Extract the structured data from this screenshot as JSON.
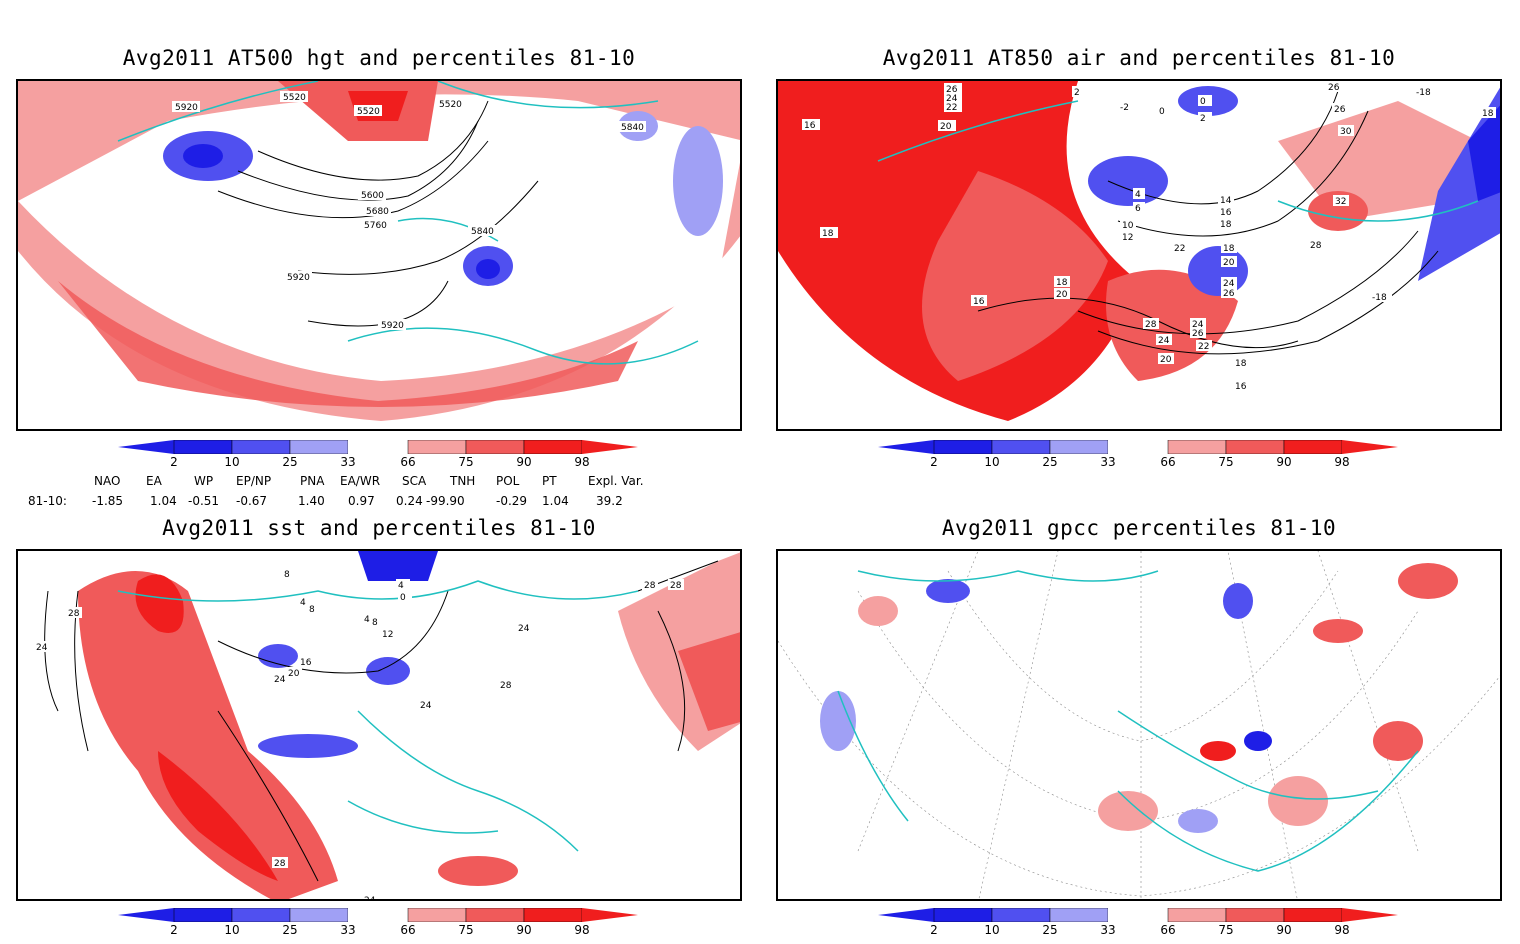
{
  "colors": {
    "blue_dark": "#1e1ee6",
    "blue_mid": "#5050f0",
    "blue_light": "#a0a0f5",
    "red_light": "#f5a0a0",
    "red_mid": "#f05a5a",
    "red_dark": "#f01e1e",
    "coast": "#20c0c0"
  },
  "colorbar_labels": [
    "2",
    "10",
    "25",
    "33",
    "66",
    "75",
    "90",
    "98"
  ],
  "panels": [
    {
      "title": "Avg2011 AT500 hgt and percentiles 81-10",
      "contour_labels": [
        "5920",
        "5520",
        "5520",
        "5520",
        "5840",
        "5600",
        "5680",
        "5760",
        "5840",
        "5920",
        "5920"
      ]
    },
    {
      "title": "Avg2011 AT850 air and percentiles 81-10",
      "contour_labels": [
        "26",
        "24",
        "22",
        "20",
        "16",
        "18",
        "2",
        "-2",
        "0",
        "0",
        "2",
        "-18",
        "26",
        "26",
        "30",
        "4",
        "6",
        "10",
        "12",
        "14",
        "16",
        "18",
        "32",
        "18",
        "20",
        "22",
        "24",
        "26",
        "28",
        "18",
        "20",
        "16",
        "28",
        "24",
        "26",
        "22",
        "24",
        "20",
        "18",
        "16",
        "-18",
        "18"
      ]
    },
    {
      "title": "Avg2011 sst and percentiles 81-10",
      "contour_labels": [
        "8",
        "4",
        "8",
        "4",
        "0",
        "4",
        "8",
        "12",
        "16",
        "20",
        "24",
        "28",
        "24",
        "28",
        "28",
        "24",
        "28",
        "24",
        "28",
        "24"
      ]
    },
    {
      "title": "Avg2011 gpcc percentiles 81-10",
      "contour_labels": []
    }
  ],
  "teleconnections": {
    "headers": [
      "NAO",
      "EA",
      "WP",
      "EP/NP",
      "PNA",
      "EA/WR",
      "SCA",
      "TNH",
      "POL",
      "PT",
      "Expl. Var."
    ],
    "row_label": "81-10:",
    "values": [
      "-1.85",
      "1.04",
      "-0.51",
      "-0.67",
      "1.40",
      "0.97",
      "0.24",
      "-99.90",
      "-0.29",
      "1.04",
      "39.2"
    ]
  }
}
